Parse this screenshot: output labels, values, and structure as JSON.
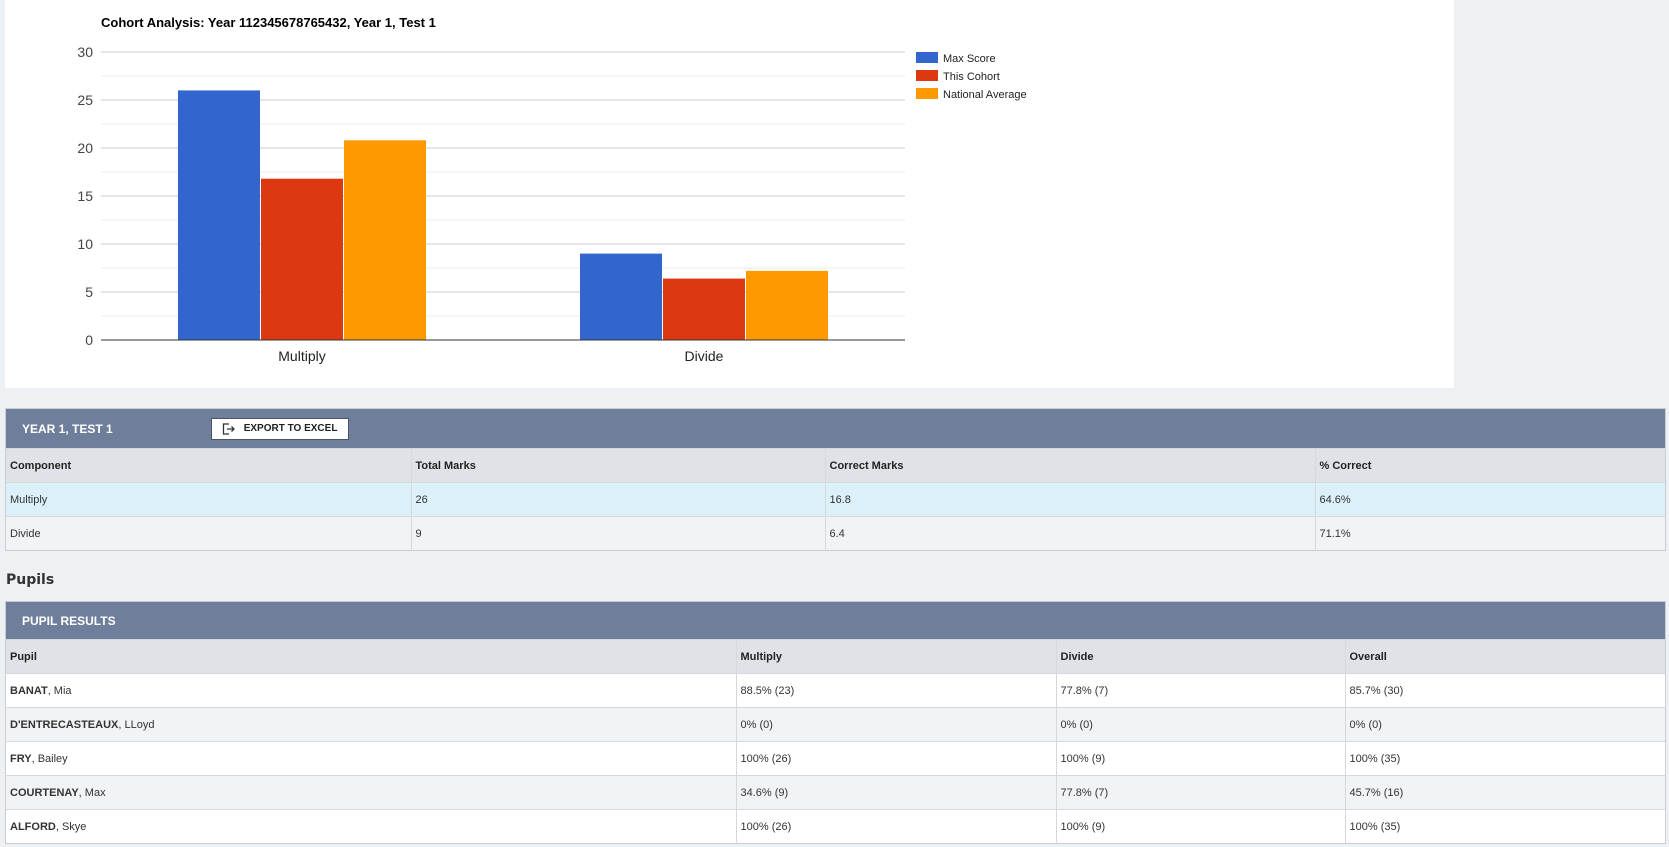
{
  "chart_data": {
    "type": "bar",
    "title": "Cohort Analysis: Year 112345678765432, Year 1, Test 1",
    "categories": [
      "Multiply",
      "Divide"
    ],
    "series": [
      {
        "name": "Max Score",
        "color": "#3366cc",
        "values": [
          26,
          9
        ]
      },
      {
        "name": "This Cohort",
        "color": "#dc3912",
        "values": [
          16.8,
          6.4
        ]
      },
      {
        "name": "National Average",
        "color": "#ff9900",
        "values": [
          20.8,
          7.2
        ]
      }
    ],
    "ylim": [
      0,
      30
    ],
    "yticks": [
      0,
      5,
      10,
      15,
      20,
      25,
      30
    ],
    "xlabel": "",
    "ylabel": "",
    "grid": true,
    "legend": "right"
  },
  "summary": {
    "title": "YEAR 1, TEST 1",
    "export_label": "EXPORT TO EXCEL",
    "export_icon": "export-icon",
    "columns": [
      "Component",
      "Total Marks",
      "Correct Marks",
      "% Correct"
    ],
    "rows": [
      [
        "Multiply",
        "26",
        "16.8",
        "64.6%"
      ],
      [
        "Divide",
        "9",
        "6.4",
        "71.1%"
      ]
    ]
  },
  "pupils_heading": "Pupils",
  "pupil_results": {
    "title": "PUPIL RESULTS",
    "columns": [
      "Pupil",
      "Multiply",
      "Divide",
      "Overall"
    ],
    "rows": [
      {
        "surname": "BANAT",
        "given": ", Mia",
        "multiply": "88.5% (23)",
        "divide": "77.8% (7)",
        "overall": "85.7% (30)"
      },
      {
        "surname": "D'ENTRECASTEAUX",
        "given": ", LLoyd",
        "multiply": "0% (0)",
        "divide": "0% (0)",
        "overall": "0% (0)"
      },
      {
        "surname": "FRY",
        "given": ", Bailey",
        "multiply": "100% (26)",
        "divide": "100% (9)",
        "overall": "100% (35)"
      },
      {
        "surname": "COURTENAY",
        "given": ", Max",
        "multiply": "34.6% (9)",
        "divide": "77.8% (7)",
        "overall": "45.7% (16)"
      },
      {
        "surname": "ALFORD",
        "given": ", Skye",
        "multiply": "100% (26)",
        "divide": "100% (9)",
        "overall": "100% (35)"
      }
    ]
  }
}
